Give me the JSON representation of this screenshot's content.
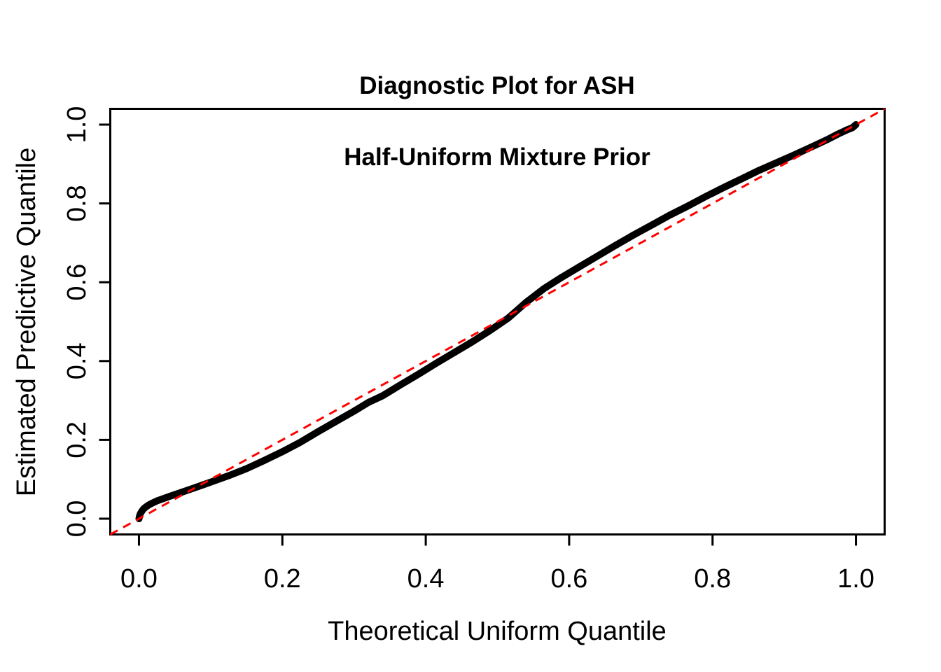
{
  "background_color": "#ffffff",
  "chart_data": {
    "type": "line",
    "title": "Diagnostic Plot for ASH",
    "subtitle": "Half-Uniform Mixture Prior",
    "xlabel": "Theoretical Uniform Quantile",
    "ylabel": "Estimated Predictive Quantile",
    "xlim": [
      -0.04,
      1.04
    ],
    "ylim": [
      -0.04,
      1.04
    ],
    "x_ticks": [
      0.0,
      0.2,
      0.4,
      0.6,
      0.8,
      1.0
    ],
    "y_ticks": [
      0.0,
      0.2,
      0.4,
      0.6,
      0.8,
      1.0
    ],
    "x_tick_labels": [
      "0.0",
      "0.2",
      "0.4",
      "0.6",
      "0.8",
      "1.0"
    ],
    "y_tick_labels": [
      "0.0",
      "0.2",
      "0.4",
      "0.6",
      "0.8",
      "1.0"
    ],
    "grid": false,
    "legend": "none",
    "box": true,
    "series": [
      {
        "name": "empirical-qq-curve",
        "color": "#000000",
        "style": "solid",
        "width": 10,
        "points": [
          [
            0.0,
            0.0
          ],
          [
            0.001,
            0.008
          ],
          [
            0.002,
            0.013
          ],
          [
            0.004,
            0.019
          ],
          [
            0.006,
            0.024
          ],
          [
            0.009,
            0.029
          ],
          [
            0.013,
            0.034
          ],
          [
            0.018,
            0.039
          ],
          [
            0.025,
            0.045
          ],
          [
            0.034,
            0.051
          ],
          [
            0.045,
            0.058
          ],
          [
            0.058,
            0.066
          ],
          [
            0.072,
            0.075
          ],
          [
            0.088,
            0.085
          ],
          [
            0.105,
            0.096
          ],
          [
            0.125,
            0.109
          ],
          [
            0.15,
            0.127
          ],
          [
            0.175,
            0.148
          ],
          [
            0.2,
            0.17
          ],
          [
            0.225,
            0.194
          ],
          [
            0.25,
            0.221
          ],
          [
            0.275,
            0.247
          ],
          [
            0.3,
            0.273
          ],
          [
            0.32,
            0.295
          ],
          [
            0.34,
            0.312
          ],
          [
            0.365,
            0.34
          ],
          [
            0.39,
            0.367
          ],
          [
            0.415,
            0.395
          ],
          [
            0.44,
            0.422
          ],
          [
            0.465,
            0.449
          ],
          [
            0.49,
            0.478
          ],
          [
            0.515,
            0.509
          ],
          [
            0.54,
            0.549
          ],
          [
            0.565,
            0.584
          ],
          [
            0.59,
            0.613
          ],
          [
            0.615,
            0.64
          ],
          [
            0.64,
            0.667
          ],
          [
            0.665,
            0.694
          ],
          [
            0.69,
            0.72
          ],
          [
            0.715,
            0.745
          ],
          [
            0.74,
            0.77
          ],
          [
            0.765,
            0.793
          ],
          [
            0.79,
            0.817
          ],
          [
            0.815,
            0.84
          ],
          [
            0.84,
            0.862
          ],
          [
            0.865,
            0.884
          ],
          [
            0.89,
            0.904
          ],
          [
            0.915,
            0.924
          ],
          [
            0.94,
            0.945
          ],
          [
            0.96,
            0.962
          ],
          [
            0.975,
            0.976
          ],
          [
            0.988,
            0.987
          ],
          [
            0.995,
            0.992
          ],
          [
            1.0,
            1.0
          ]
        ]
      },
      {
        "name": "identity-reference-line",
        "color": "#ff0000",
        "style": "dashed",
        "width": 3,
        "points": [
          [
            -0.04,
            -0.04
          ],
          [
            1.04,
            1.04
          ]
        ]
      }
    ]
  }
}
